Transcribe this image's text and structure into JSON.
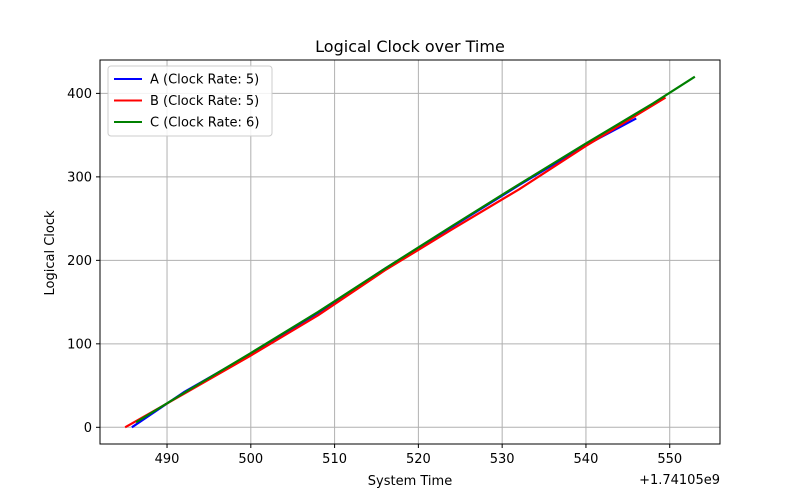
{
  "chart_data": {
    "type": "line",
    "title": "Logical Clock over Time",
    "xlabel": "System Time",
    "ylabel": "Logical Clock",
    "x_offset_label": "+1.74105e9",
    "xlim": [
      1741050482,
      1741050556
    ],
    "ylim": [
      -20,
      440
    ],
    "x_tick_values": [
      490,
      500,
      510,
      520,
      530,
      540,
      550
    ],
    "x_ticks": [
      "490",
      "500",
      "510",
      "520",
      "530",
      "540",
      "550"
    ],
    "y_ticks": [
      0,
      100,
      200,
      300,
      400
    ],
    "grid": true,
    "legend_position": "top-left",
    "x_offset": 1741050000,
    "series": [
      {
        "name": "A (Clock Rate: 5)",
        "color": "#0000ff",
        "x": [
          1741050485.8,
          1741050492,
          1741050500,
          1741050508,
          1741050516,
          1741050524,
          1741050532,
          1741050540,
          1741050546
        ],
        "y": [
          0,
          42,
          88,
          137,
          190,
          240,
          290,
          338,
          370
        ]
      },
      {
        "name": "B (Clock Rate: 5)",
        "color": "#ff0000",
        "x": [
          1741050485,
          1741050492,
          1741050500,
          1741050508,
          1741050516,
          1741050524,
          1741050532,
          1741050540,
          1741050549.5
        ],
        "y": [
          0,
          40,
          86,
          134,
          188,
          237,
          285,
          337,
          395
        ]
      },
      {
        "name": "C (Clock Rate: 6)",
        "color": "#008000",
        "x": [
          1741050486.3,
          1741050492,
          1741050500,
          1741050508,
          1741050516,
          1741050524,
          1741050532,
          1741050540,
          1741050548,
          1741050553
        ],
        "y": [
          6,
          41,
          89,
          138,
          190,
          241,
          291,
          340,
          388,
          420
        ]
      }
    ]
  }
}
